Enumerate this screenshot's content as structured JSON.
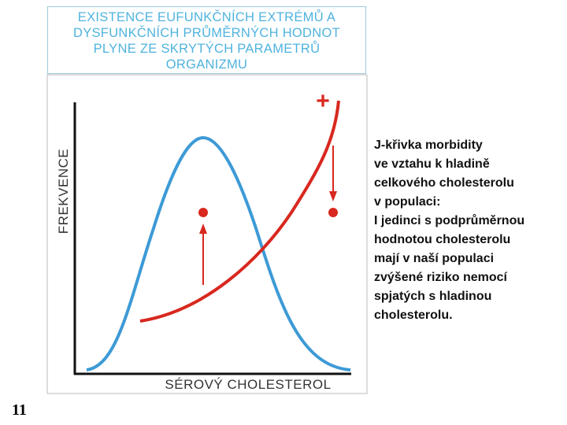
{
  "title": {
    "lines": [
      "EXISTENCE EUFUNKČNÍCH EXTRÉMŮ A",
      "DYSFUNKČNÍCH PRŮMĚRNÝCH HODNOT",
      "PLYNE ZE SKRYTÝCH PARAMETRŮ",
      "ORGANIZMU"
    ]
  },
  "diagram": {
    "y_label": "FREKVENCE",
    "x_label": "SÉROVÝ CHOLESTEROL",
    "marker": "+"
  },
  "caption": {
    "lines": [
      "J-křivka morbidity",
      "ve vztahu k hladině",
      "celkového cholesterolu",
      "v populaci:",
      "I jedinci s podprůměrnou",
      "hodnotou cholesterolu",
      "mají v naší populaci",
      "zvýšené riziko nemocí",
      "spjatých s hladinou",
      "cholesterolu."
    ]
  },
  "slide_number": "11"
}
